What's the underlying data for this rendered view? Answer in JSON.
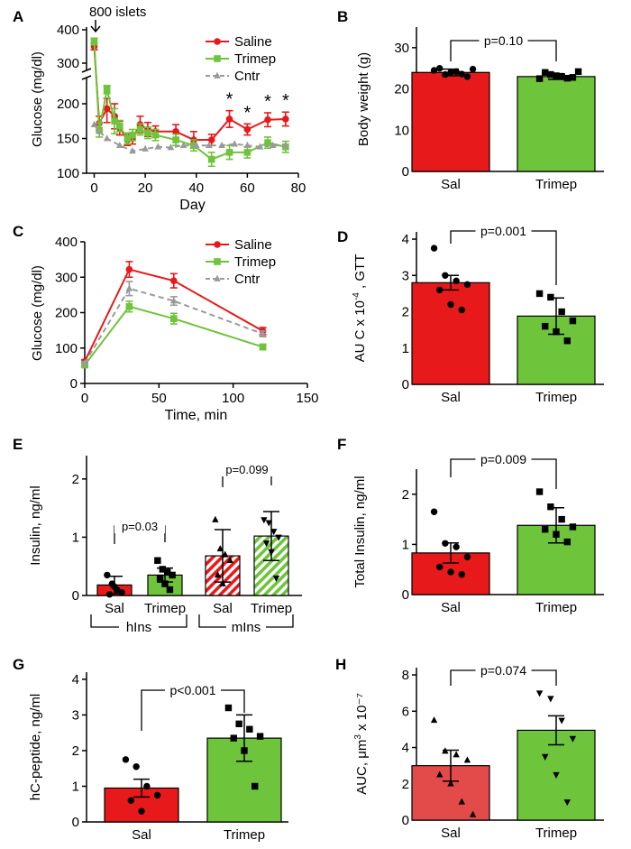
{
  "colors": {
    "saline": "#e8191b",
    "trimep": "#6ec43a",
    "cntr": "#9a9a9a",
    "sal_light": "#e34b4b",
    "axis": "#000000"
  },
  "chart_data": [
    {
      "panel": "A",
      "type": "line",
      "ylabel": "Glucose (mg/dl)",
      "xlabel": "Day",
      "xlim": [
        -3,
        80
      ],
      "xticks": [
        0,
        20,
        40,
        60,
        80
      ],
      "ylim": [
        100,
        410
      ],
      "yticks": [
        100,
        150,
        200,
        300,
        400
      ],
      "y_axis_break": [
        250,
        280
      ],
      "annotation": "800 islets",
      "star_days": [
        53,
        60,
        68,
        75
      ],
      "star_label": "*",
      "legend": [
        "Saline",
        "Trimep",
        "Cntr"
      ],
      "series": [
        {
          "name": "Saline",
          "color": "#e8191b",
          "marker": "circle",
          "x": [
            0,
            2,
            5,
            8,
            10,
            13,
            15,
            18,
            21,
            24,
            32,
            39,
            46,
            53,
            60,
            68,
            75
          ],
          "y": [
            350,
            172,
            193,
            182,
            165,
            148,
            150,
            170,
            163,
            160,
            160,
            148,
            148,
            178,
            163,
            177,
            178
          ],
          "err": [
            10,
            10,
            20,
            18,
            10,
            8,
            8,
            12,
            10,
            8,
            10,
            12,
            8,
            12,
            8,
            10,
            10
          ]
        },
        {
          "name": "Trimep",
          "color": "#6ec43a",
          "marker": "square",
          "x": [
            0,
            2,
            5,
            8,
            10,
            13,
            15,
            18,
            21,
            24,
            32,
            39,
            46,
            53,
            60,
            68,
            75
          ],
          "y": [
            365,
            162,
            235,
            175,
            168,
            150,
            155,
            163,
            158,
            155,
            148,
            140,
            120,
            130,
            130,
            144,
            138
          ],
          "err": [
            10,
            10,
            10,
            18,
            8,
            8,
            8,
            8,
            8,
            8,
            8,
            8,
            10,
            10,
            8,
            8,
            8
          ]
        },
        {
          "name": "Cntr",
          "color": "#9a9a9a",
          "marker": "triangle",
          "x": [
            0,
            2,
            5,
            10,
            15,
            20,
            25,
            30,
            35,
            40,
            45,
            50,
            55,
            60,
            65,
            70,
            75
          ],
          "y": [
            170,
            160,
            150,
            140,
            132,
            135,
            138,
            137,
            140,
            140,
            140,
            140,
            142,
            140,
            138,
            140,
            140
          ],
          "err": [
            0,
            0,
            0,
            0,
            0,
            0,
            0,
            0,
            0,
            0,
            0,
            0,
            0,
            0,
            0,
            0,
            0
          ]
        }
      ]
    },
    {
      "panel": "B",
      "type": "bar",
      "categories": [
        "Sal",
        "Trimep"
      ],
      "ylabel": "Body weight (g)",
      "ylim": [
        0,
        35
      ],
      "yticks": [
        0,
        10,
        20,
        30
      ],
      "values": [
        24,
        23
      ],
      "err": [
        0.8,
        0.7
      ],
      "points": [
        [
          24.5,
          23.5,
          24.2,
          23,
          25,
          24,
          23.6,
          24.8
        ],
        [
          22.5,
          23.5,
          23,
          22.8,
          24,
          23.2,
          22.6,
          24.2
        ]
      ],
      "pvalue": "p=0.10",
      "markers": [
        "circle",
        "square"
      ]
    },
    {
      "panel": "C",
      "type": "line",
      "ylabel": "Glucose (mg/dl)",
      "xlabel": "Time, min",
      "xlim": [
        0,
        150
      ],
      "xticks": [
        0,
        50,
        100,
        150
      ],
      "ylim": [
        0,
        400
      ],
      "yticks": [
        0,
        100,
        200,
        300,
        400
      ],
      "legend": [
        "Saline",
        "Trimep",
        "Cntr"
      ],
      "series": [
        {
          "name": "Saline",
          "color": "#e8191b",
          "marker": "circle",
          "x": [
            0,
            30,
            60,
            120
          ],
          "y": [
            62,
            322,
            290,
            148
          ],
          "err": [
            5,
            22,
            20,
            10
          ]
        },
        {
          "name": "Trimep",
          "color": "#6ec43a",
          "marker": "square",
          "x": [
            0,
            30,
            60,
            120
          ],
          "y": [
            52,
            217,
            183,
            103
          ],
          "err": [
            5,
            15,
            15,
            8
          ]
        },
        {
          "name": "Cntr",
          "color": "#9a9a9a",
          "marker": "triangle",
          "x": [
            0,
            30,
            60,
            120
          ],
          "y": [
            57,
            268,
            233,
            140
          ],
          "err": [
            5,
            20,
            12,
            8
          ]
        }
      ]
    },
    {
      "panel": "D",
      "type": "bar",
      "categories": [
        "Sal",
        "Trimep"
      ],
      "ylabel": "AU C x 10⁻⁴ , GTT",
      "ylim": [
        0,
        4.2
      ],
      "yticks": [
        0,
        1,
        2,
        3,
        4
      ],
      "values": [
        2.8,
        1.88
      ],
      "err": [
        0.2,
        0.5
      ],
      "points": [
        [
          3.75,
          3.0,
          2.85,
          2.75,
          2.6,
          2.2,
          2.05
        ],
        [
          2.5,
          2.4,
          2.0,
          1.75,
          1.6,
          1.45,
          1.2
        ]
      ],
      "pvalue": "p=0.001",
      "markers": [
        "circle",
        "square"
      ]
    },
    {
      "panel": "E",
      "type": "bar",
      "categories": [
        "Sal",
        "Trimep",
        "Sal",
        "Trimep"
      ],
      "groups": [
        "hIns",
        "mIns"
      ],
      "ylabel": "Insulin, ng/ml",
      "ylim": [
        0,
        2.4
      ],
      "yticks": [
        0,
        1,
        2
      ],
      "values": [
        0.18,
        0.35,
        0.68,
        1.02
      ],
      "err": [
        0.15,
        0.12,
        0.45,
        0.42
      ],
      "points": [
        [
          0.35,
          0.2,
          0.1,
          0.05,
          0.02,
          0.15
        ],
        [
          0.6,
          0.45,
          0.4,
          0.35,
          0.3,
          0.2,
          0.1
        ],
        [
          1.3,
          0.8,
          0.7,
          0.6,
          0.35,
          0.2
        ],
        [
          1.3,
          1.25,
          1.1,
          1.0,
          0.9,
          0.75,
          0.3
        ]
      ],
      "pvalues": [
        "p=0.03",
        "p=0.099"
      ],
      "markers": [
        "circle",
        "square",
        "triangle",
        "triangle-down"
      ]
    },
    {
      "panel": "F",
      "type": "bar",
      "categories": [
        "Sal",
        "Trimep"
      ],
      "ylabel": "Total  Insulin, ng/ml",
      "ylim": [
        0,
        2.5
      ],
      "yticks": [
        0,
        1,
        2
      ],
      "values": [
        0.83,
        1.38
      ],
      "err": [
        0.2,
        0.35
      ],
      "points": [
        [
          1.65,
          1.02,
          0.95,
          0.75,
          0.55,
          0.45,
          0.4
        ],
        [
          2.05,
          1.75,
          1.5,
          1.35,
          1.3,
          1.2,
          1.05
        ]
      ],
      "pvalue": "p=0.009",
      "markers": [
        "circle",
        "square"
      ]
    },
    {
      "panel": "G",
      "type": "bar",
      "categories": [
        "Sal",
        "Trimep"
      ],
      "ylabel": "hC-peptide, ng/ml",
      "ylim": [
        0,
        4.2
      ],
      "yticks": [
        0,
        1,
        2,
        3,
        4
      ],
      "values": [
        0.95,
        2.35
      ],
      "err": [
        0.25,
        0.65
      ],
      "points": [
        [
          1.75,
          1.55,
          1.0,
          0.75,
          0.6,
          0.3
        ],
        [
          3.2,
          2.75,
          2.6,
          2.4,
          2.35,
          2.0,
          1.0
        ]
      ],
      "pvalue": "p<0.001",
      "markers": [
        "circle",
        "square"
      ]
    },
    {
      "panel": "H",
      "type": "bar",
      "categories": [
        "Sal",
        "Trimep"
      ],
      "ylabel": "AUC, μm³ x 10⁻⁷",
      "ylim": [
        0,
        8.4
      ],
      "yticks": [
        0,
        2,
        4,
        6,
        8
      ],
      "values": [
        3.0,
        4.95
      ],
      "err": [
        0.85,
        0.8
      ],
      "points": [
        [
          5.5,
          3.8,
          3.6,
          3.3,
          2.5,
          2.0,
          1.0,
          0.3
        ],
        [
          7.0,
          6.7,
          5.5,
          4.5,
          3.5,
          2.5,
          1.0
        ]
      ],
      "pvalue": "p=0.074",
      "markers": [
        "triangle",
        "triangle-down"
      ]
    }
  ]
}
